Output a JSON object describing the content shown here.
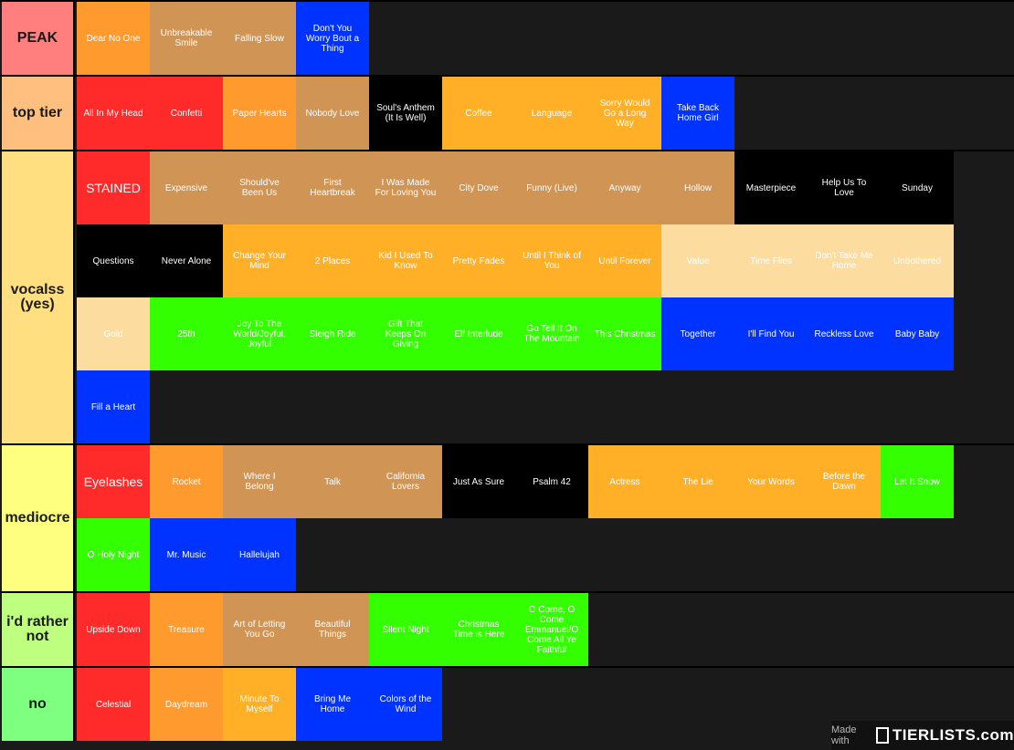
{
  "tiers": [
    {
      "name": "PEAK",
      "color": "#ff7f7f",
      "items": [
        {
          "text": "Dear No One",
          "color": "#ff9a2e"
        },
        {
          "text": "Unbreakable Smile",
          "color": "#d09454"
        },
        {
          "text": "Falling Slow",
          "color": "#d09454"
        },
        {
          "text": "Don't You Worry Bout a Thing",
          "color": "#0033ff"
        }
      ]
    },
    {
      "name": "top tier",
      "color": "#ffbf7f",
      "items": [
        {
          "text": "All In My Head",
          "color": "#ff2a2a"
        },
        {
          "text": "Confetti",
          "color": "#ff2a2a"
        },
        {
          "text": "Paper Hearts",
          "color": "#ff9a2e"
        },
        {
          "text": "Nobody Love",
          "color": "#d09454"
        },
        {
          "text": "Soul's Anthem (It Is Well)",
          "color": "#000000"
        },
        {
          "text": "Coffee",
          "color": "#ffb027"
        },
        {
          "text": "Language",
          "color": "#ffb027"
        },
        {
          "text": "Sorry Would Go a Long Way",
          "color": "#ffb027"
        },
        {
          "text": "Take Back Home Girl",
          "color": "#0033ff"
        }
      ]
    },
    {
      "name": "vocalss (yes)",
      "color": "#ffdf7f",
      "items": [
        {
          "text": "STAINED",
          "color": "#ff2a2a",
          "big": true
        },
        {
          "text": "Expensive",
          "color": "#d09454"
        },
        {
          "text": "Should've Been Us",
          "color": "#d09454"
        },
        {
          "text": "First Heartbreak",
          "color": "#d09454"
        },
        {
          "text": "I Was Made For Loving You",
          "color": "#d09454"
        },
        {
          "text": "City Dove",
          "color": "#d09454"
        },
        {
          "text": "Funny (Live)",
          "color": "#d09454"
        },
        {
          "text": "Anyway",
          "color": "#d09454"
        },
        {
          "text": "Hollow",
          "color": "#d09454"
        },
        {
          "text": "Masterpiece",
          "color": "#000000"
        },
        {
          "text": "Help Us To Love",
          "color": "#000000"
        },
        {
          "text": "Sunday",
          "color": "#000000"
        },
        {
          "text": "Questions",
          "color": "#000000"
        },
        {
          "text": "Never Alone",
          "color": "#000000"
        },
        {
          "text": "Change Your Mind",
          "color": "#ffb027"
        },
        {
          "text": "2 Places",
          "color": "#ffb027"
        },
        {
          "text": "Kid I Used To Know",
          "color": "#ffb027"
        },
        {
          "text": "Pretty Fades",
          "color": "#ffb027"
        },
        {
          "text": "Until I Think of You",
          "color": "#ffb027"
        },
        {
          "text": "Until Forever",
          "color": "#ffb027"
        },
        {
          "text": "Value",
          "color": "#fddca0"
        },
        {
          "text": "Time Flies",
          "color": "#fddca0"
        },
        {
          "text": "Don't Take Me Home",
          "color": "#fddca0"
        },
        {
          "text": "Unbothered",
          "color": "#fddca0"
        },
        {
          "text": "Gold",
          "color": "#fddca0"
        },
        {
          "text": "25th",
          "color": "#33ff00"
        },
        {
          "text": "Joy To The World/Joyful, Joyful",
          "color": "#33ff00"
        },
        {
          "text": "Sleigh Ride",
          "color": "#33ff00"
        },
        {
          "text": "Gift That Keeps On Giving",
          "color": "#33ff00"
        },
        {
          "text": "Elf Interlude",
          "color": "#33ff00"
        },
        {
          "text": "Go Tell It On The Mountain",
          "color": "#33ff00"
        },
        {
          "text": "This Christmas",
          "color": "#33ff00"
        },
        {
          "text": "Together",
          "color": "#0033ff"
        },
        {
          "text": "I'll Find You",
          "color": "#0033ff"
        },
        {
          "text": "Reckless Love",
          "color": "#0033ff"
        },
        {
          "text": "Baby Baby",
          "color": "#0033ff"
        },
        {
          "text": "Fill a Heart",
          "color": "#0033ff"
        }
      ]
    },
    {
      "name": "mediocre",
      "color": "#ffff7f",
      "items": [
        {
          "text": "Eyelashes",
          "color": "#ff2a2a",
          "big": true
        },
        {
          "text": "Rocket",
          "color": "#ff9a2e"
        },
        {
          "text": "Where I Belong",
          "color": "#d09454"
        },
        {
          "text": "Talk",
          "color": "#d09454"
        },
        {
          "text": "California Lovers",
          "color": "#d09454"
        },
        {
          "text": "Just As Sure",
          "color": "#000000"
        },
        {
          "text": "Psalm 42",
          "color": "#000000"
        },
        {
          "text": "Actress",
          "color": "#ffb027"
        },
        {
          "text": "The Lie",
          "color": "#ffb027"
        },
        {
          "text": "Your Words",
          "color": "#ffb027"
        },
        {
          "text": "Before the Dawn",
          "color": "#ffb027"
        },
        {
          "text": "Let It Snow",
          "color": "#33ff00"
        },
        {
          "text": "O Holy Night",
          "color": "#33ff00"
        },
        {
          "text": "Mr. Music",
          "color": "#0033ff"
        },
        {
          "text": "Hallelujah",
          "color": "#0033ff"
        }
      ]
    },
    {
      "name": "i'd rather not",
      "color": "#bfff7f",
      "items": [
        {
          "text": "Upside Down",
          "color": "#ff2a2a"
        },
        {
          "text": "Treasure",
          "color": "#ff9a2e"
        },
        {
          "text": "Art of Letting You Go",
          "color": "#d09454"
        },
        {
          "text": "Beautiful Things",
          "color": "#d09454"
        },
        {
          "text": "Silent Night",
          "color": "#33ff00"
        },
        {
          "text": "Christmas Time is Here",
          "color": "#33ff00"
        },
        {
          "text": "O Come, O Come Emmanuel/O Come All Ye Faithful",
          "color": "#33ff00"
        }
      ]
    },
    {
      "name": "no",
      "color": "#7fff7f",
      "items": [
        {
          "text": "Celestial",
          "color": "#ff2a2a"
        },
        {
          "text": "Daydream",
          "color": "#ff9a2e"
        },
        {
          "text": "Minute To Myself",
          "color": "#ffb027"
        },
        {
          "text": "Bring Me Home",
          "color": "#0033ff"
        },
        {
          "text": "Colors of the Wind",
          "color": "#0033ff"
        }
      ]
    }
  ],
  "footer": {
    "made_with": "Made with",
    "brand": "TIERLISTS.com"
  }
}
